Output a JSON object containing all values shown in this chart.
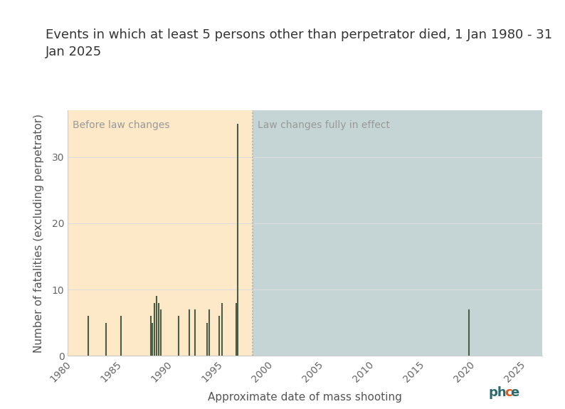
{
  "title": "Events in which at least 5 persons other than perpetrator died, 1 Jan 1980 - 31\nJan 2025",
  "xlabel": "Approximate date of mass shooting",
  "ylabel": "Number of fatalities (excluding perpetrator)",
  "xlim": [
    1979.5,
    2026.5
  ],
  "ylim": [
    0,
    37
  ],
  "yticks": [
    0,
    10,
    20,
    30
  ],
  "xticks": [
    1980,
    1985,
    1990,
    1995,
    2000,
    2005,
    2010,
    2015,
    2020,
    2025
  ],
  "law_change_year": 1997.8,
  "before_bg": "#fde8c8",
  "after_bg": "#c5d5d5",
  "before_label": "Before law changes",
  "after_label": "Law changes fully in effect",
  "bar_color": "#4a5e45",
  "dashed_line_color": "#aaaaaa",
  "grid_color": "#dddddd",
  "title_fontsize": 13,
  "label_fontsize": 11,
  "tick_fontsize": 10,
  "shootings": [
    {
      "year": 1981.5,
      "fatalities": 6
    },
    {
      "year": 1983.3,
      "fatalities": 5
    },
    {
      "year": 1984.8,
      "fatalities": 6
    },
    {
      "year": 1987.7,
      "fatalities": 6
    },
    {
      "year": 1987.9,
      "fatalities": 5
    },
    {
      "year": 1988.1,
      "fatalities": 8
    },
    {
      "year": 1988.3,
      "fatalities": 9
    },
    {
      "year": 1988.5,
      "fatalities": 8
    },
    {
      "year": 1988.7,
      "fatalities": 7
    },
    {
      "year": 1990.5,
      "fatalities": 6
    },
    {
      "year": 1991.5,
      "fatalities": 7
    },
    {
      "year": 1992.1,
      "fatalities": 7
    },
    {
      "year": 1993.3,
      "fatalities": 5
    },
    {
      "year": 1993.5,
      "fatalities": 7
    },
    {
      "year": 1994.5,
      "fatalities": 6
    },
    {
      "year": 1994.8,
      "fatalities": 8
    },
    {
      "year": 1996.2,
      "fatalities": 8
    },
    {
      "year": 1996.35,
      "fatalities": 35
    },
    {
      "year": 2019.2,
      "fatalities": 7
    }
  ],
  "logo_color_main": "#2d6b6b",
  "logo_color_dot": "#e05a20"
}
